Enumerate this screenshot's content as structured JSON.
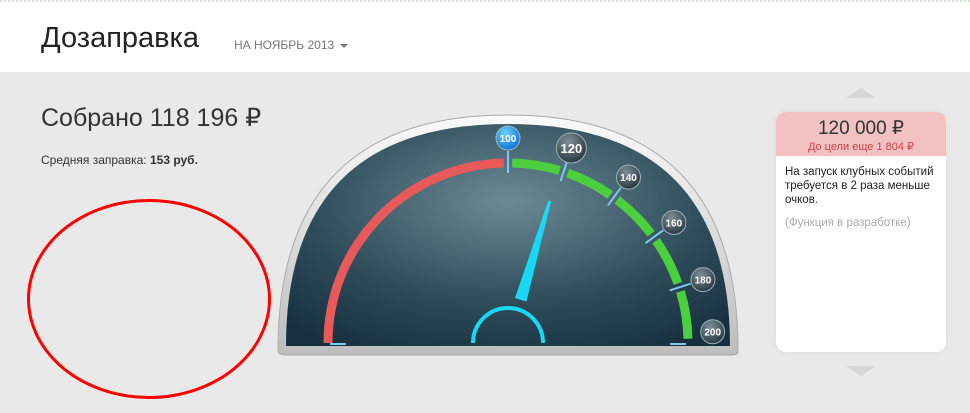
{
  "header": {
    "title": "Дозаправка",
    "period": "НА НОЯБРЬ 2013"
  },
  "summary": {
    "collected": "Собрано 118 196 ₽",
    "avg_label": "Средняя заправка:",
    "avg_value": "153 руб."
  },
  "gauge": {
    "min": 0,
    "max": 200,
    "value": 118.2,
    "current_marker": "120",
    "ticks": [
      "100",
      "120",
      "140",
      "160",
      "180",
      "200"
    ],
    "red_to": 100,
    "colors": {
      "red": "#e85a5a",
      "green": "#4ccf3e",
      "needle": "#1ad8f5"
    }
  },
  "goal_card": {
    "amount": "120 000 ₽",
    "remaining": "До цели еще 1 804 ₽",
    "description": "На запуск клубных событий требуется в 2 раза меньше очков.",
    "note": "(Функция в разработке)"
  }
}
